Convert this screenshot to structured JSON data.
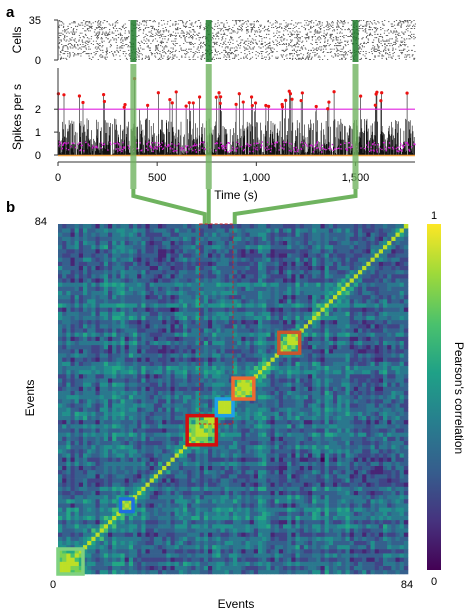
{
  "panel_a": {
    "label": "a",
    "raster_ylabel": "Cells",
    "rate_ylabel": "Spikes per s",
    "xlabel": "Time (s)",
    "raster_yticks": [
      "35",
      "0"
    ],
    "rate_yticks": [
      "2",
      "1",
      "0"
    ],
    "xticks": [
      "0",
      "500",
      "1,000",
      "1,500"
    ],
    "xticks_values": [
      0,
      500,
      1000,
      1500
    ],
    "x_range": [
      0,
      1800
    ],
    "cell_count": 35,
    "rate_range": [
      0,
      3.8
    ],
    "threshold_rate": 2.0,
    "highlighted_event_times_s": [
      380,
      760,
      1500
    ]
  },
  "panel_b": {
    "label": "b",
    "xlabel": "Events",
    "ylabel": "Events",
    "x_min_label": "0",
    "x_max_label": "84",
    "y_max_label": "84",
    "n_events": 84,
    "colorbar_label": "Pearson's correlation",
    "colorbar_max": "1",
    "colorbar_min": "0",
    "highlight_boxes": [
      {
        "start": 0,
        "end": 6,
        "color": "#7fd17f"
      },
      {
        "start": 15,
        "end": 18,
        "color": "#1f6fe0"
      },
      {
        "start": 31,
        "end": 38,
        "color": "#d40e0e"
      },
      {
        "start": 38,
        "end": 42,
        "color": "#1f9fe8"
      },
      {
        "start": 42,
        "end": 47,
        "color": "#ee6a30"
      },
      {
        "start": 53,
        "end": 58,
        "color": "#c9562d"
      }
    ]
  },
  "colors": {
    "raster": "#333333",
    "rate_trace": "#111111",
    "rate_peaks": "#ee1111",
    "threshold_line": "#e020e0",
    "magenta_dots": "#d21fd2",
    "baseline": "#f0a040",
    "event_highlight": "#6fb35f"
  }
}
